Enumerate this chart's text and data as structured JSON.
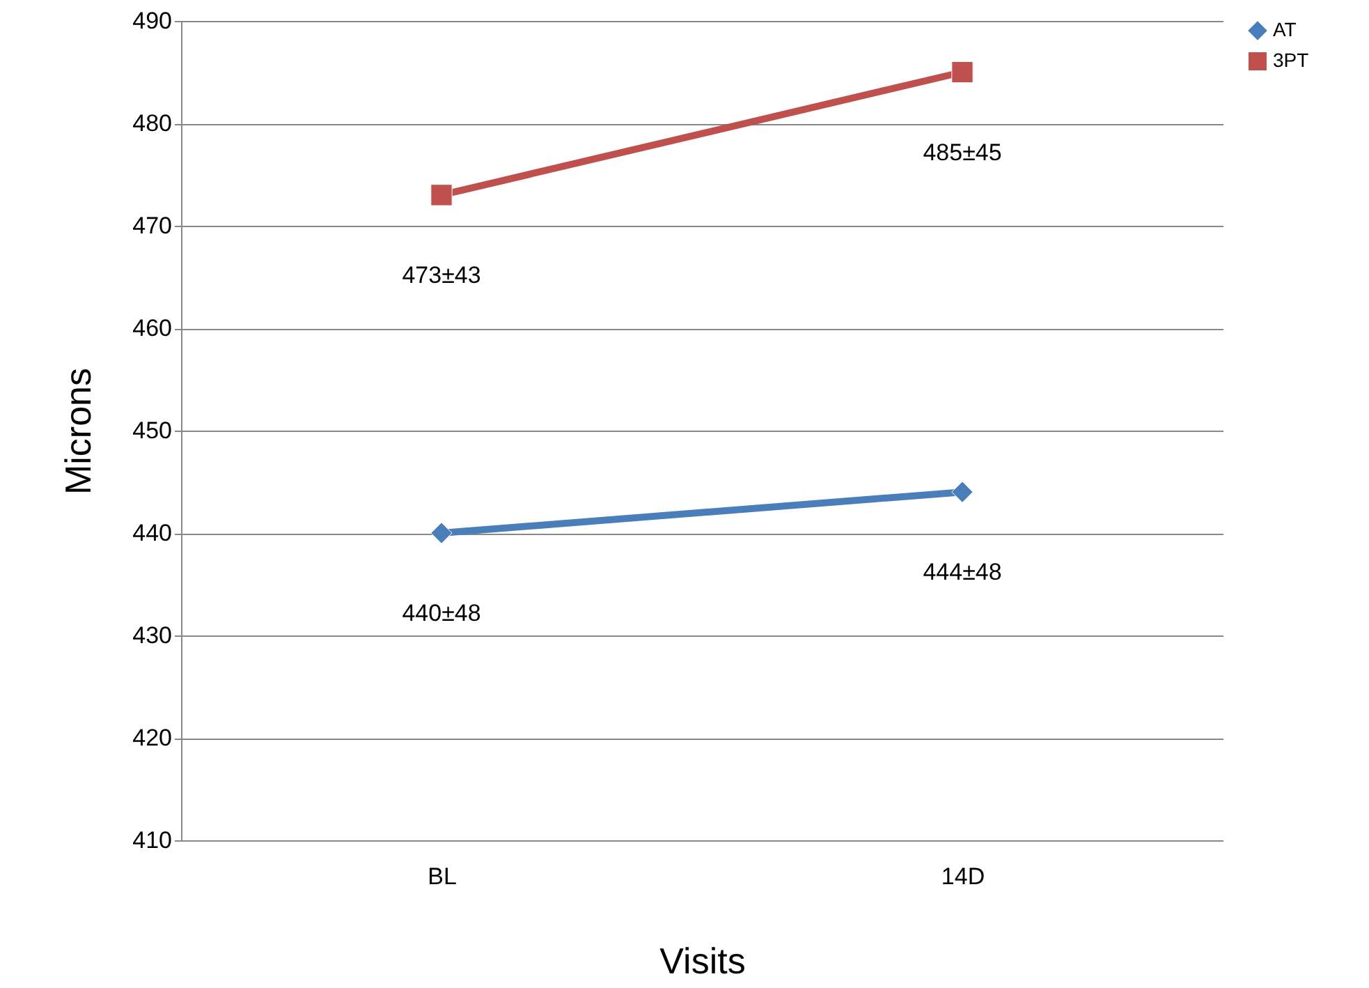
{
  "chart_data": {
    "type": "line",
    "xlabel": "Visits",
    "ylabel": "Microns",
    "categories": [
      "BL",
      "14D"
    ],
    "series": [
      {
        "name": "AT",
        "color": "#4a7ebb",
        "marker": "diamond",
        "values": [
          440,
          444
        ],
        "value_labels": [
          "440±48",
          "444±48"
        ]
      },
      {
        "name": "3PT",
        "color": "#c0504d",
        "marker": "square",
        "values": [
          473,
          485
        ],
        "value_labels": [
          "473±43",
          "485±45"
        ]
      }
    ],
    "ylim": [
      410,
      490
    ],
    "yticks": [
      410,
      420,
      430,
      440,
      450,
      460,
      470,
      480,
      490
    ],
    "grid": "y",
    "legend": "right",
    "line_style": "solid"
  }
}
